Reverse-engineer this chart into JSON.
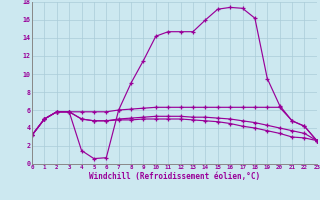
{
  "xlabel": "Windchill (Refroidissement éolien,°C)",
  "ylabel": "",
  "bg_color": "#cce8f0",
  "line_color": "#990099",
  "grid_color": "#aaccd8",
  "xlim": [
    0,
    23
  ],
  "ylim": [
    0,
    18
  ],
  "xticks": [
    0,
    1,
    2,
    3,
    4,
    5,
    6,
    7,
    8,
    9,
    10,
    11,
    12,
    13,
    14,
    15,
    16,
    17,
    18,
    19,
    20,
    21,
    22,
    23
  ],
  "yticks": [
    0,
    2,
    4,
    6,
    8,
    10,
    12,
    14,
    16,
    18
  ],
  "series": [
    [
      3.2,
      5.0,
      5.8,
      5.8,
      1.5,
      0.6,
      0.7,
      6.0,
      9.0,
      11.5,
      14.2,
      14.7,
      14.7,
      14.7,
      16.0,
      17.2,
      17.4,
      17.3,
      16.2,
      9.5,
      6.5,
      4.8,
      4.2,
      2.6
    ],
    [
      3.2,
      5.0,
      5.8,
      5.8,
      5.8,
      5.8,
      5.8,
      6.0,
      6.1,
      6.2,
      6.3,
      6.3,
      6.3,
      6.3,
      6.3,
      6.3,
      6.3,
      6.3,
      6.3,
      6.3,
      6.3,
      4.8,
      4.2,
      2.6
    ],
    [
      3.2,
      5.0,
      5.8,
      5.8,
      5.0,
      4.8,
      4.8,
      5.0,
      5.1,
      5.2,
      5.3,
      5.3,
      5.3,
      5.2,
      5.2,
      5.1,
      5.0,
      4.8,
      4.6,
      4.3,
      4.0,
      3.7,
      3.4,
      2.6
    ],
    [
      3.2,
      5.0,
      5.8,
      5.8,
      5.0,
      4.8,
      4.8,
      4.9,
      4.9,
      5.0,
      5.0,
      5.0,
      5.0,
      4.9,
      4.8,
      4.7,
      4.5,
      4.2,
      4.0,
      3.7,
      3.4,
      3.0,
      2.9,
      2.6
    ]
  ]
}
